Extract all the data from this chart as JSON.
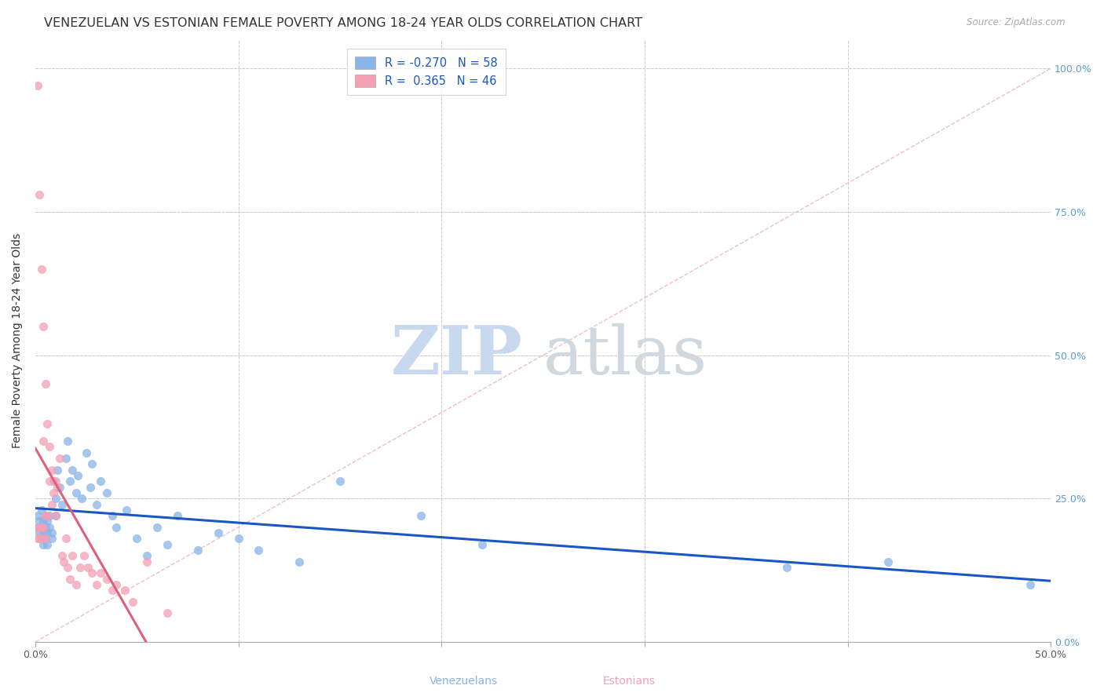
{
  "title": "VENEZUELAN VS ESTONIAN FEMALE POVERTY AMONG 18-24 YEAR OLDS CORRELATION CHART",
  "source": "Source: ZipAtlas.com",
  "ylabel": "Female Poverty Among 18-24 Year Olds",
  "xlabel_venezuelans": "Venezuelans",
  "xlabel_estonians": "Estonians",
  "xlim": [
    0.0,
    0.5
  ],
  "ylim": [
    0.0,
    1.05
  ],
  "xticks": [
    0.0,
    0.1,
    0.2,
    0.3,
    0.4,
    0.5
  ],
  "xticklabels": [
    "0.0%",
    "",
    "",
    "",
    "",
    "50.0%"
  ],
  "yticks": [
    0.0,
    0.25,
    0.5,
    0.75,
    1.0
  ],
  "yticklabels_right": [
    "0.0%",
    "25.0%",
    "50.0%",
    "75.0%",
    "100.0%"
  ],
  "venezuelan_color": "#89b4e8",
  "estonian_color": "#f4a0b5",
  "venezuelan_R": "-0.270",
  "venezuelan_N": "58",
  "estonian_R": " 0.365",
  "estonian_N": "46",
  "legend_color": "#1a56c4",
  "watermark_zip": "ZIP",
  "watermark_atlas": "atlas",
  "watermark_color_blue": "#c5d8f0",
  "watermark_color_gray": "#d0d8e0",
  "venezuelan_line_color": "#1a56c4",
  "estonian_line_color": "#e0607a",
  "diagonal_color": "#e8b0c0",
  "background_color": "#ffffff",
  "grid_color": "#cccccc",
  "title_fontsize": 11.5,
  "axis_fontsize": 10,
  "tick_fontsize": 9,
  "right_tick_color": "#5b9bd5",
  "marker_size": 55,
  "venezuelans_x": [
    0.001,
    0.001,
    0.002,
    0.002,
    0.003,
    0.003,
    0.003,
    0.004,
    0.004,
    0.004,
    0.005,
    0.005,
    0.005,
    0.006,
    0.006,
    0.006,
    0.007,
    0.007,
    0.008,
    0.008,
    0.009,
    0.01,
    0.01,
    0.011,
    0.012,
    0.013,
    0.015,
    0.016,
    0.017,
    0.018,
    0.02,
    0.021,
    0.023,
    0.025,
    0.027,
    0.028,
    0.03,
    0.032,
    0.035,
    0.038,
    0.04,
    0.045,
    0.05,
    0.055,
    0.06,
    0.065,
    0.07,
    0.08,
    0.09,
    0.1,
    0.11,
    0.13,
    0.15,
    0.19,
    0.22,
    0.37,
    0.42,
    0.49
  ],
  "venezuelans_y": [
    0.2,
    0.22,
    0.19,
    0.21,
    0.18,
    0.2,
    0.23,
    0.17,
    0.21,
    0.19,
    0.22,
    0.18,
    0.2,
    0.19,
    0.21,
    0.17,
    0.2,
    0.22,
    0.19,
    0.18,
    0.28,
    0.25,
    0.22,
    0.3,
    0.27,
    0.24,
    0.32,
    0.35,
    0.28,
    0.3,
    0.26,
    0.29,
    0.25,
    0.33,
    0.27,
    0.31,
    0.24,
    0.28,
    0.26,
    0.22,
    0.2,
    0.23,
    0.18,
    0.15,
    0.2,
    0.17,
    0.22,
    0.16,
    0.19,
    0.18,
    0.16,
    0.14,
    0.28,
    0.22,
    0.17,
    0.13,
    0.14,
    0.1
  ],
  "estonians_x": [
    0.001,
    0.001,
    0.001,
    0.002,
    0.002,
    0.002,
    0.003,
    0.003,
    0.003,
    0.004,
    0.004,
    0.004,
    0.005,
    0.005,
    0.005,
    0.006,
    0.006,
    0.007,
    0.007,
    0.008,
    0.008,
    0.009,
    0.01,
    0.01,
    0.011,
    0.012,
    0.013,
    0.014,
    0.015,
    0.016,
    0.017,
    0.018,
    0.02,
    0.022,
    0.024,
    0.026,
    0.028,
    0.03,
    0.032,
    0.035,
    0.038,
    0.04,
    0.044,
    0.048,
    0.055,
    0.065
  ],
  "estonians_y": [
    0.97,
    0.2,
    0.18,
    0.78,
    0.2,
    0.18,
    0.65,
    0.2,
    0.18,
    0.55,
    0.35,
    0.2,
    0.45,
    0.22,
    0.18,
    0.38,
    0.22,
    0.34,
    0.28,
    0.3,
    0.24,
    0.26,
    0.28,
    0.22,
    0.27,
    0.32,
    0.15,
    0.14,
    0.18,
    0.13,
    0.11,
    0.15,
    0.1,
    0.13,
    0.15,
    0.13,
    0.12,
    0.1,
    0.12,
    0.11,
    0.09,
    0.1,
    0.09,
    0.07,
    0.14,
    0.05
  ]
}
